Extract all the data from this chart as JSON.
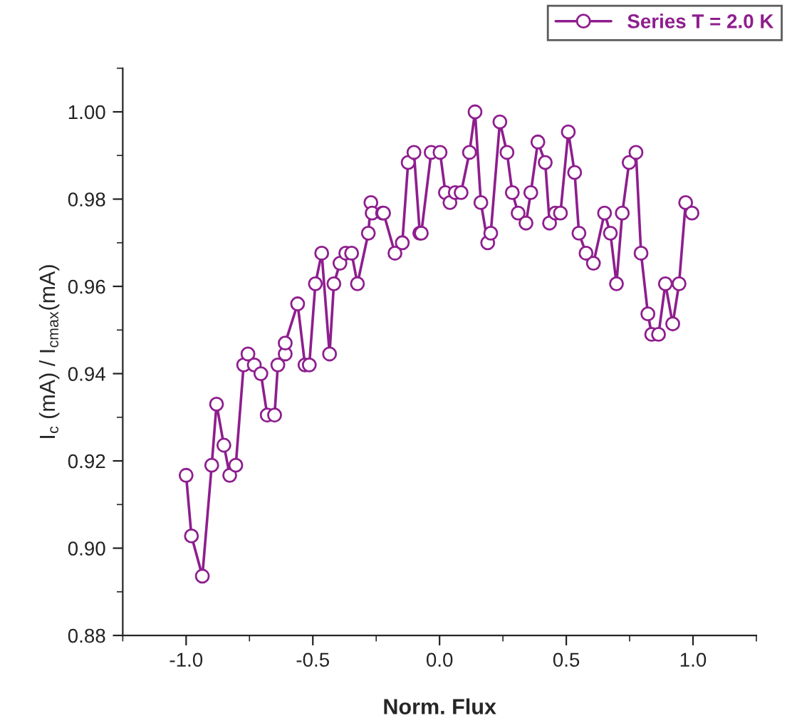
{
  "chart_data": {
    "type": "line",
    "xlabel": "Norm. Flux",
    "ylabel": "I$_{c}$ (mA) / I$_{cmax}$(mA)",
    "xlim": [
      -1.25,
      1.25
    ],
    "ylim": [
      0.88,
      1.01
    ],
    "xticks": [
      {
        "value": -1.0,
        "label": "-1.0"
      },
      {
        "value": -0.5,
        "label": "-0.5"
      },
      {
        "value": 0.0,
        "label": "0.0"
      },
      {
        "value": 0.5,
        "label": "0.5"
      },
      {
        "value": 1.0,
        "label": "1.0"
      }
    ],
    "yticks": [
      {
        "value": 0.88,
        "label": "0.88"
      },
      {
        "value": 0.9,
        "label": "0.90"
      },
      {
        "value": 0.92,
        "label": "0.92"
      },
      {
        "value": 0.94,
        "label": "0.94"
      },
      {
        "value": 0.96,
        "label": "0.96"
      },
      {
        "value": 0.98,
        "label": "0.98"
      },
      {
        "value": 1.0,
        "label": "1.00"
      }
    ],
    "grid": false,
    "legend": "top right",
    "marker": "circle",
    "line_style": "solid",
    "series": [
      {
        "name": "Series T = 2.0 K",
        "color": "#8e1e8e",
        "x": [
          -1.0,
          -0.979,
          -0.936,
          -0.899,
          -0.88,
          -0.851,
          -0.828,
          -0.804,
          -0.773,
          -0.756,
          -0.731,
          -0.705,
          -0.68,
          -0.651,
          -0.638,
          -0.609,
          -0.609,
          -0.56,
          -0.531,
          -0.514,
          -0.49,
          -0.465,
          -0.434,
          -0.417,
          -0.393,
          -0.37,
          -0.347,
          -0.324,
          -0.281,
          -0.271,
          -0.266,
          -0.225,
          -0.221,
          -0.176,
          -0.147,
          -0.124,
          -0.101,
          -0.078,
          -0.072,
          -0.033,
          0.002,
          0.023,
          0.041,
          0.062,
          0.085,
          0.118,
          0.14,
          0.163,
          0.19,
          0.202,
          0.238,
          0.266,
          0.287,
          0.31,
          0.341,
          0.36,
          0.388,
          0.417,
          0.434,
          0.457,
          0.477,
          0.508,
          0.533,
          0.55,
          0.578,
          0.607,
          0.651,
          0.674,
          0.698,
          0.721,
          0.748,
          0.775,
          0.795,
          0.822,
          0.837,
          0.864,
          0.891,
          0.92,
          0.945,
          0.971,
          0.996
        ],
        "values": [
          0.9167,
          0.9028,
          0.8936,
          0.919,
          0.933,
          0.9236,
          0.9167,
          0.919,
          0.942,
          0.9445,
          0.942,
          0.94,
          0.9305,
          0.9305,
          0.942,
          0.9445,
          0.947,
          0.956,
          0.942,
          0.942,
          0.9606,
          0.9676,
          0.9445,
          0.9606,
          0.9653,
          0.9676,
          0.9676,
          0.9606,
          0.9722,
          0.9792,
          0.9768,
          0.9768,
          0.9768,
          0.9676,
          0.97,
          0.9884,
          0.9907,
          0.9722,
          0.9722,
          0.9907,
          0.9907,
          0.9815,
          0.9792,
          0.9815,
          0.9815,
          0.9907,
          1.0,
          0.9792,
          0.97,
          0.9722,
          0.9977,
          0.9907,
          0.9815,
          0.9768,
          0.9745,
          0.9815,
          0.9931,
          0.9884,
          0.9745,
          0.9768,
          0.9768,
          0.9954,
          0.9861,
          0.9722,
          0.9676,
          0.9653,
          0.9768,
          0.9722,
          0.9606,
          0.9768,
          0.9884,
          0.9907,
          0.9676,
          0.9537,
          0.949,
          0.949,
          0.9606,
          0.9514,
          0.9606,
          0.9792,
          0.9768
        ]
      }
    ]
  }
}
